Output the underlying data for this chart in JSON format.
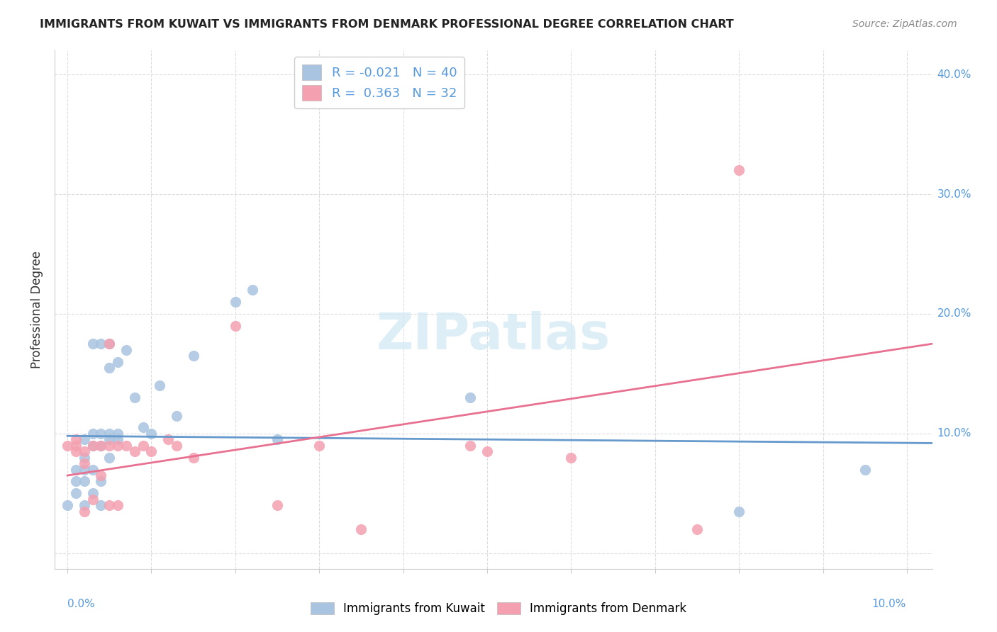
{
  "title": "IMMIGRANTS FROM KUWAIT VS IMMIGRANTS FROM DENMARK PROFESSIONAL DEGREE CORRELATION CHART",
  "source": "Source: ZipAtlas.com",
  "ylabel": "Professional Degree",
  "xmin": -0.0015,
  "xmax": 0.103,
  "ymin": -0.013,
  "ymax": 0.42,
  "kuwait_color": "#a8c4e0",
  "denmark_color": "#f4a0b0",
  "kuwait_line_color": "#6699cc",
  "denmark_line_color": "#e87090",
  "kuwait_scatter_x": [
    0.0,
    0.001,
    0.001,
    0.001,
    0.002,
    0.002,
    0.002,
    0.002,
    0.002,
    0.003,
    0.003,
    0.003,
    0.003,
    0.003,
    0.004,
    0.004,
    0.004,
    0.004,
    0.004,
    0.005,
    0.005,
    0.005,
    0.005,
    0.005,
    0.006,
    0.006,
    0.006,
    0.007,
    0.008,
    0.009,
    0.01,
    0.011,
    0.013,
    0.015,
    0.02,
    0.022,
    0.025,
    0.048,
    0.08,
    0.095
  ],
  "kuwait_scatter_y": [
    0.04,
    0.05,
    0.06,
    0.07,
    0.04,
    0.06,
    0.07,
    0.08,
    0.095,
    0.05,
    0.07,
    0.09,
    0.1,
    0.175,
    0.04,
    0.06,
    0.09,
    0.1,
    0.175,
    0.08,
    0.095,
    0.1,
    0.155,
    0.175,
    0.095,
    0.1,
    0.16,
    0.17,
    0.13,
    0.105,
    0.1,
    0.14,
    0.115,
    0.165,
    0.21,
    0.22,
    0.095,
    0.13,
    0.035,
    0.07
  ],
  "denmark_scatter_x": [
    0.0,
    0.001,
    0.001,
    0.001,
    0.002,
    0.002,
    0.002,
    0.003,
    0.003,
    0.004,
    0.004,
    0.005,
    0.005,
    0.005,
    0.006,
    0.006,
    0.007,
    0.008,
    0.009,
    0.01,
    0.012,
    0.013,
    0.015,
    0.02,
    0.025,
    0.03,
    0.035,
    0.048,
    0.05,
    0.06,
    0.075,
    0.08
  ],
  "denmark_scatter_y": [
    0.09,
    0.085,
    0.09,
    0.095,
    0.035,
    0.075,
    0.085,
    0.045,
    0.09,
    0.065,
    0.09,
    0.04,
    0.09,
    0.175,
    0.04,
    0.09,
    0.09,
    0.085,
    0.09,
    0.085,
    0.095,
    0.09,
    0.08,
    0.19,
    0.04,
    0.09,
    0.02,
    0.09,
    0.085,
    0.08,
    0.02,
    0.32
  ],
  "kuwait_trend_x": [
    0.0,
    0.103
  ],
  "kuwait_trend_y": [
    0.098,
    0.092
  ],
  "denmark_trend_x": [
    0.0,
    0.103
  ],
  "denmark_trend_y": [
    0.065,
    0.175
  ]
}
